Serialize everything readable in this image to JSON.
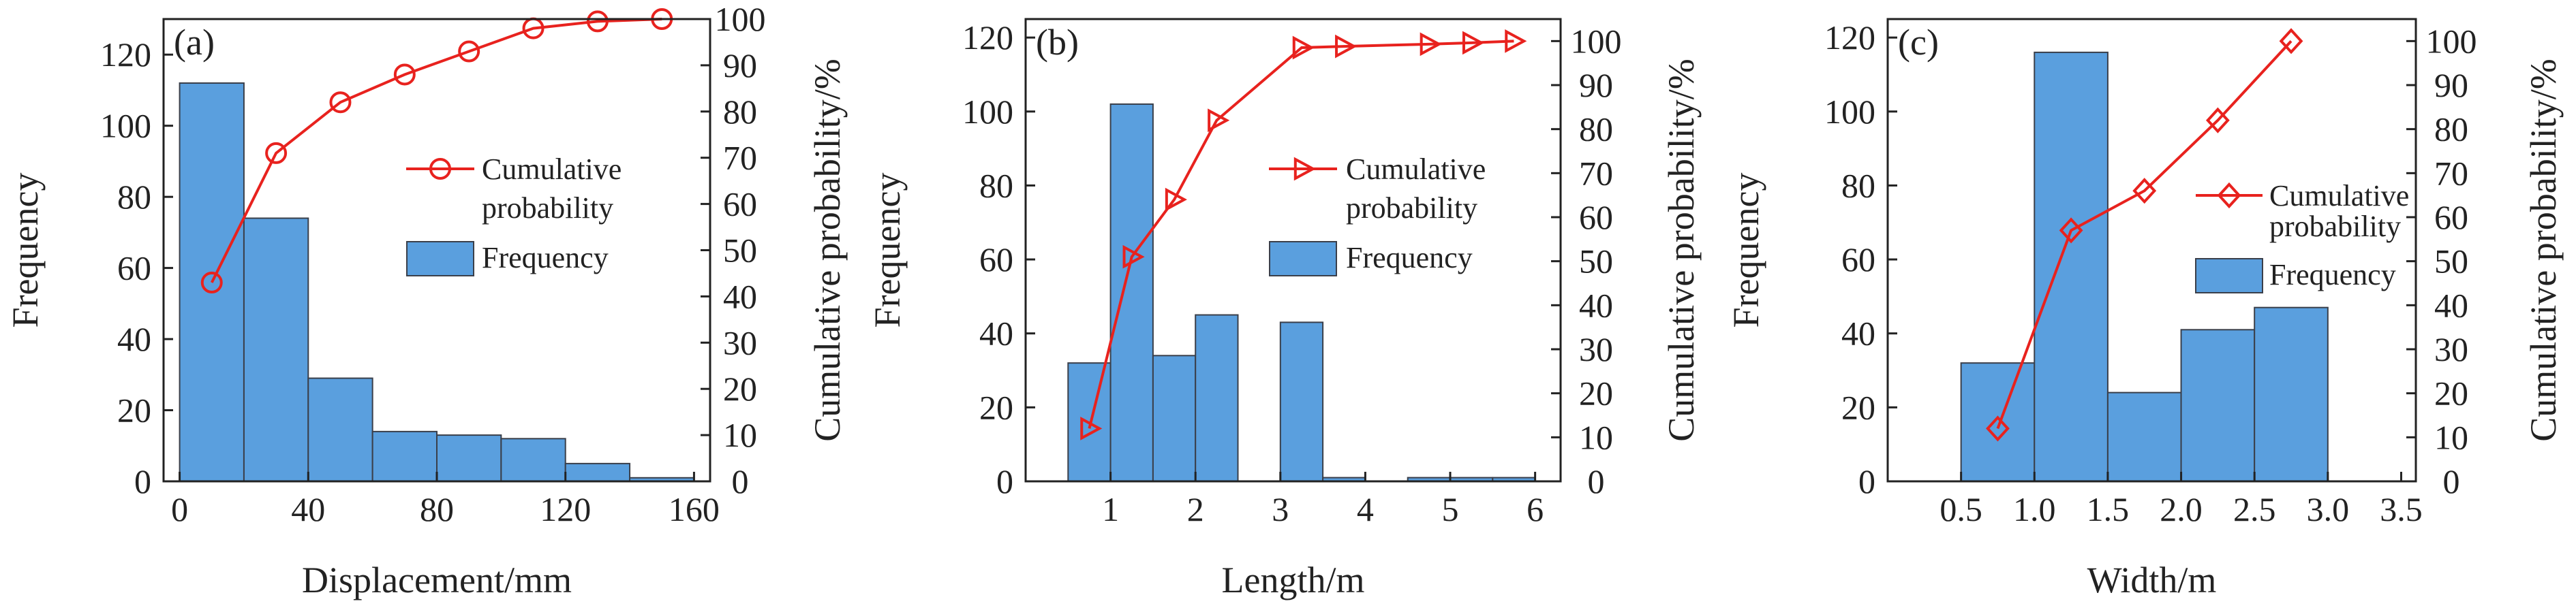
{
  "colors": {
    "bar_fill": "#5a9fde",
    "bar_stroke": "#3a3f4a",
    "line": "#e8221e",
    "axis": "#222222",
    "background": "#ffffff"
  },
  "chart_data": [
    {
      "type": "bar",
      "panel_label": "(a)",
      "xlabel": "Displacement/mm",
      "ylabel": "Frequency",
      "y2label": "Cumulative probability/%",
      "xlim": [
        -5,
        165
      ],
      "ylim": [
        0,
        130
      ],
      "y2lim": [
        0,
        100
      ],
      "xticks": [
        0,
        40,
        80,
        120,
        160
      ],
      "yticks": [
        0,
        20,
        40,
        60,
        80,
        100,
        120
      ],
      "y2ticks": [
        0,
        10,
        20,
        30,
        40,
        50,
        60,
        70,
        80,
        90,
        100
      ],
      "bins": [
        [
          0,
          20
        ],
        [
          20,
          40
        ],
        [
          40,
          60
        ],
        [
          60,
          80
        ],
        [
          80,
          100
        ],
        [
          100,
          120
        ],
        [
          120,
          140
        ],
        [
          140,
          160
        ]
      ],
      "values": [
        112,
        74,
        29,
        14,
        13,
        12,
        5,
        1
      ],
      "cumulative": {
        "marker": "circle",
        "x": [
          10,
          30,
          50,
          70,
          90,
          110,
          130,
          150
        ],
        "values": [
          43,
          71,
          82,
          88,
          93,
          98,
          99.5,
          100
        ]
      },
      "legend": {
        "line": [
          "Cumulative",
          "probability"
        ],
        "bar": "Frequency",
        "placement": "right-middle"
      }
    },
    {
      "type": "bar",
      "panel_label": "(b)",
      "xlabel": "Length/m",
      "ylabel": "Frequency",
      "y2label": "Cumulative probability/%",
      "xlim": [
        0,
        6.3
      ],
      "ylim": [
        0,
        125
      ],
      "y2lim": [
        0,
        105
      ],
      "xticks": [
        1,
        2,
        3,
        4,
        5,
        6
      ],
      "yticks": [
        0,
        20,
        40,
        60,
        80,
        100,
        120
      ],
      "y2ticks": [
        0,
        10,
        20,
        30,
        40,
        50,
        60,
        70,
        80,
        90,
        100
      ],
      "bins": [
        [
          0.5,
          1.0
        ],
        [
          1.0,
          1.5
        ],
        [
          1.5,
          2.0
        ],
        [
          2.0,
          2.5
        ],
        [
          2.5,
          3.0
        ],
        [
          3.0,
          3.5
        ],
        [
          3.5,
          4.0
        ],
        [
          4.0,
          4.5
        ],
        [
          4.5,
          5.0
        ],
        [
          5.0,
          5.5
        ],
        [
          5.5,
          6.0
        ]
      ],
      "values": [
        32,
        102,
        34,
        45,
        0,
        43,
        1,
        0,
        1,
        1,
        1
      ],
      "cumulative": {
        "marker": "triangle-right",
        "x": [
          0.75,
          1.25,
          1.75,
          2.25,
          3.25,
          3.75,
          4.75,
          5.25,
          5.75
        ],
        "values": [
          12,
          51,
          64,
          82,
          98.5,
          98.8,
          99.3,
          99.6,
          100
        ]
      },
      "legend": {
        "line": [
          "Cumulative",
          "probability"
        ],
        "bar": "Frequency",
        "placement": "right-middle"
      }
    },
    {
      "type": "bar",
      "panel_label": "(c)",
      "xlabel": "Width/m",
      "ylabel": "Frequency",
      "y2label": "Cumulative probability/%",
      "xlim": [
        0,
        3.6
      ],
      "ylim": [
        0,
        125
      ],
      "y2lim": [
        0,
        105
      ],
      "xticks": [
        "0.5",
        "1.0",
        "1.5",
        "2.0",
        "2.5",
        "3.0",
        "3.5"
      ],
      "yticks": [
        0,
        20,
        40,
        60,
        80,
        100,
        120
      ],
      "y2ticks": [
        0,
        10,
        20,
        30,
        40,
        50,
        60,
        70,
        80,
        90,
        100
      ],
      "bins": [
        [
          0.5,
          1.0
        ],
        [
          1.0,
          1.5
        ],
        [
          1.5,
          2.0
        ],
        [
          2.0,
          2.5
        ],
        [
          2.5,
          3.0
        ]
      ],
      "values": [
        32,
        116,
        24,
        41,
        47
      ],
      "cumulative": {
        "marker": "diamond",
        "x": [
          0.75,
          1.25,
          1.75,
          2.25,
          2.75
        ],
        "values": [
          12,
          57,
          66,
          82,
          100
        ]
      },
      "legend": {
        "line": [
          "Cumulative",
          "probability"
        ],
        "bar": "Frequency",
        "placement": "right-middle"
      }
    }
  ]
}
